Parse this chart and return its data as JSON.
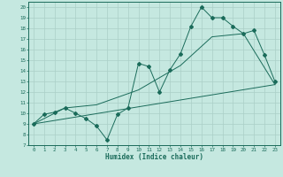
{
  "title": "",
  "xlabel": "Humidex (Indice chaleur)",
  "bg_color": "#c5e8e0",
  "grid_color": "#aacfc7",
  "line_color": "#1a6b5a",
  "xlim": [
    -0.5,
    23.5
  ],
  "ylim": [
    7,
    20.5
  ],
  "xticks": [
    0,
    1,
    2,
    3,
    4,
    5,
    6,
    7,
    8,
    9,
    10,
    11,
    12,
    13,
    14,
    15,
    16,
    17,
    18,
    19,
    20,
    21,
    22,
    23
  ],
  "yticks": [
    7,
    8,
    9,
    10,
    11,
    12,
    13,
    14,
    15,
    16,
    17,
    18,
    19,
    20
  ],
  "line1_x": [
    0,
    1,
    2,
    3,
    4,
    5,
    6,
    7,
    8,
    9,
    10,
    11,
    12,
    13,
    14,
    15,
    16,
    17,
    18,
    19,
    20,
    21,
    22,
    23
  ],
  "line1_y": [
    9,
    9.9,
    10.1,
    10.5,
    10.0,
    9.5,
    8.8,
    7.5,
    9.9,
    10.5,
    14.7,
    14.4,
    12.0,
    14.1,
    15.6,
    18.2,
    20.0,
    19.0,
    19.0,
    18.2,
    17.5,
    17.8,
    15.5,
    13.0
  ],
  "line2_x": [
    0,
    23
  ],
  "line2_y": [
    9.0,
    12.7
  ],
  "line3_x": [
    0,
    3,
    6,
    10,
    14,
    17,
    20,
    23
  ],
  "line3_y": [
    9.0,
    10.5,
    10.8,
    12.2,
    14.5,
    17.2,
    17.5,
    12.7
  ],
  "xlabel_fontsize": 5.5,
  "tick_fontsize": 4.2
}
